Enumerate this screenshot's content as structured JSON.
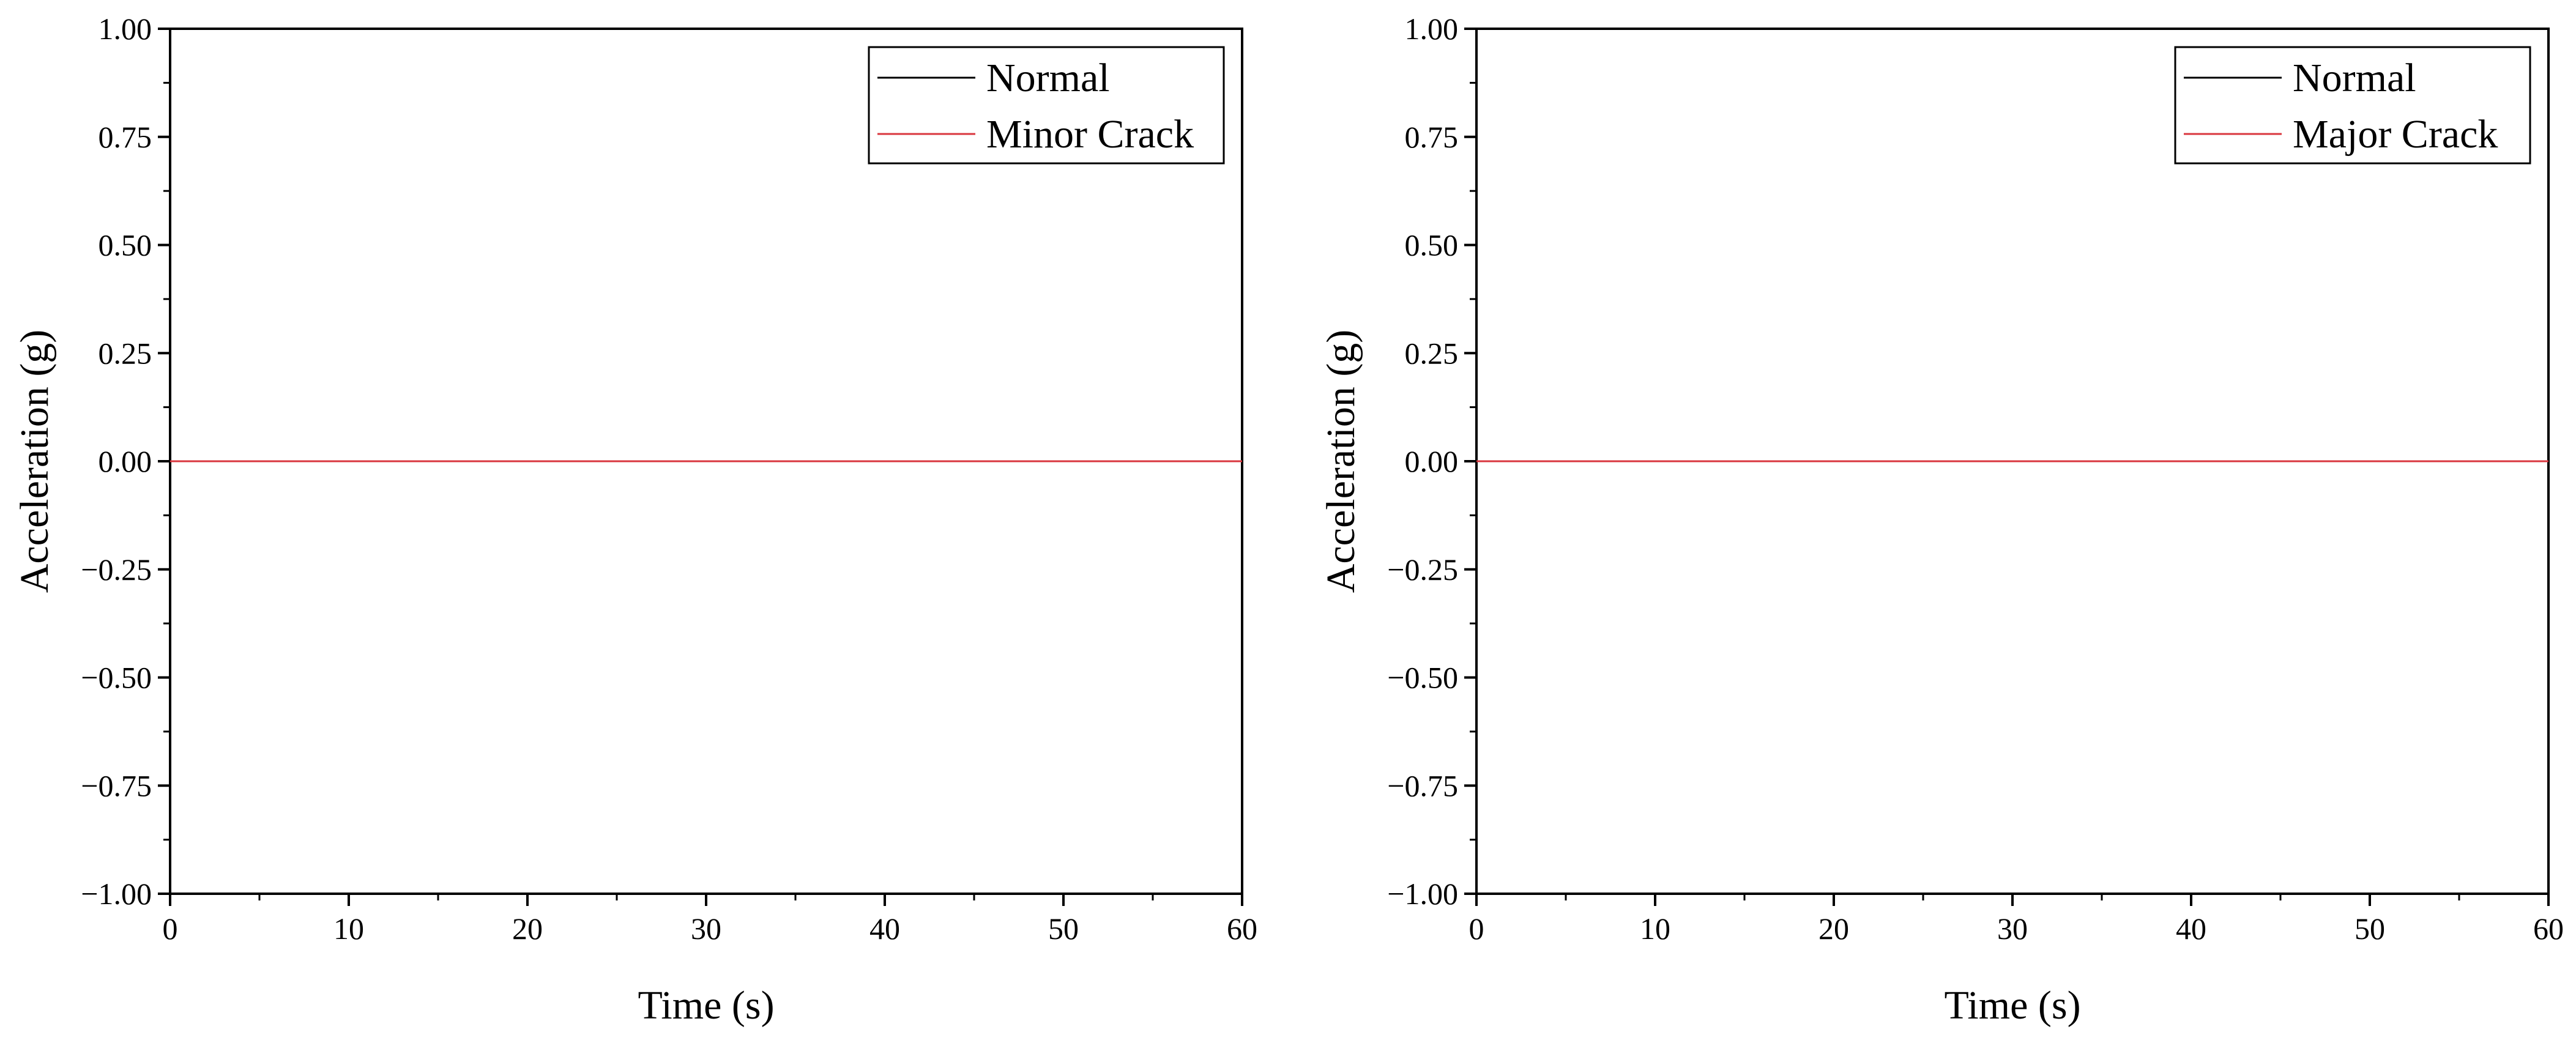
{
  "colors": {
    "normal": "#000000",
    "crack": "#d9363e",
    "axis": "#000000",
    "background": "#ffffff"
  },
  "chart_data": [
    {
      "type": "line",
      "title": "",
      "xlabel": "Time (s)",
      "ylabel": "Acceleration (g)",
      "xlim": [
        0,
        60
      ],
      "ylim": [
        -1.0,
        1.0
      ],
      "xticks": [
        0,
        10,
        20,
        30,
        40,
        50,
        60
      ],
      "xtick_labels": [
        "0",
        "10",
        "20",
        "30",
        "40",
        "50",
        "60"
      ],
      "yticks": [
        -1.0,
        -0.75,
        -0.5,
        -0.25,
        0.0,
        0.25,
        0.5,
        0.75,
        1.0
      ],
      "ytick_labels": [
        "−1.00",
        "−0.75",
        "−0.50",
        "−0.25",
        "0.00",
        "0.25",
        "0.50",
        "0.75",
        "1.00"
      ],
      "grid": false,
      "legend": "top-right",
      "series": [
        {
          "name": "Normal",
          "color": "#000000",
          "x": [
            0,
            60
          ],
          "y": [
            0,
            0
          ]
        },
        {
          "name": "Minor Crack",
          "color": "#d9363e",
          "x": [
            0,
            60
          ],
          "y": [
            0,
            0
          ]
        }
      ]
    },
    {
      "type": "line",
      "title": "",
      "xlabel": "Time (s)",
      "ylabel": "Acceleration (g)",
      "xlim": [
        0,
        60
      ],
      "ylim": [
        -1.0,
        1.0
      ],
      "xticks": [
        0,
        10,
        20,
        30,
        40,
        50,
        60
      ],
      "xtick_labels": [
        "0",
        "10",
        "20",
        "30",
        "40",
        "50",
        "60"
      ],
      "yticks": [
        -1.0,
        -0.75,
        -0.5,
        -0.25,
        0.0,
        0.25,
        0.5,
        0.75,
        1.0
      ],
      "ytick_labels": [
        "−1.00",
        "−0.75",
        "−0.50",
        "−0.25",
        "0.00",
        "0.25",
        "0.50",
        "0.75",
        "1.00"
      ],
      "grid": false,
      "legend": "top-right",
      "series": [
        {
          "name": "Normal",
          "color": "#000000",
          "x": [
            0,
            60
          ],
          "y": [
            0,
            0
          ]
        },
        {
          "name": "Major Crack",
          "color": "#d9363e",
          "x": [
            0,
            60
          ],
          "y": [
            0,
            0
          ]
        }
      ]
    }
  ]
}
